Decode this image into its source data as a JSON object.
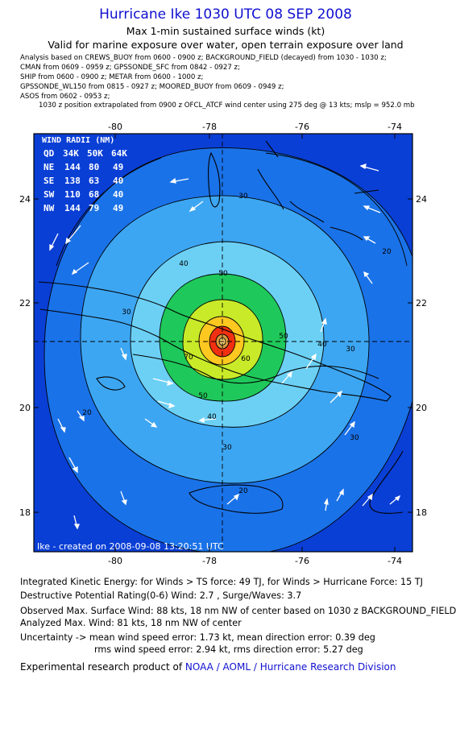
{
  "header": {
    "title": "Hurricane Ike 1030 UTC 08 SEP 2008",
    "subtitle": "Max 1-min sustained surface winds (kt)",
    "validity": "Valid for marine exposure over water, open terrain exposure over land"
  },
  "sources": [
    "Analysis based on  CREWS_BUOY from 0600 - 0900 z;  BACKGROUND_FIELD (decayed) from 1030 - 1030 z;",
    "CMAN from 0609 - 0959 z;  GPSSONDE_SFC from 0842 - 0927 z;",
    "SHIP from 0600 - 0900 z;  METAR from 0600 - 1000 z;",
    "GPSSONDE_WL150 from 0815 - 0927 z;  MOORED_BUOY from 0609 - 0949 z;",
    "ASOS from 0602 - 0953 z;"
  ],
  "position_note": "1030 z position extrapolated from 0900 z OFCL_ATCF wind center using 275 deg @ 13 kts; mslp = 952.0 mb",
  "map": {
    "lon_ticks": [
      "-80",
      "-78",
      "-76",
      "-74"
    ],
    "lat_ticks": [
      "24",
      "22",
      "20",
      "18"
    ],
    "lon_range": [
      -81.5,
      -73.5
    ],
    "lat_range": [
      17.3,
      25.2
    ],
    "center": {
      "lon": -77.5,
      "lat": 21.3
    },
    "contour_labels": [
      "30",
      "30",
      "40",
      "50",
      "30",
      "40",
      "50",
      "60",
      "70",
      "50",
      "40",
      "30",
      "20",
      "20",
      "20",
      "30"
    ],
    "wind_radii": {
      "title": "WIND RADII (NM)",
      "header": [
        "QD",
        "34K",
        "50K",
        "64K"
      ],
      "rows": [
        [
          "NE",
          "144",
          "80",
          "49"
        ],
        [
          "SE",
          "138",
          "63",
          "40"
        ],
        [
          "SW",
          "110",
          "68",
          "40"
        ],
        [
          "NW",
          "144",
          "79",
          "49"
        ]
      ]
    },
    "credit": "Ike - created on 2008-09-08 13:20:51 UTC",
    "colors": {
      "ocean": "#0a3fd6",
      "band20": "#1a72e8",
      "band30": "#3da6f2",
      "band40": "#6cd0f5",
      "band50": "#1fc85a",
      "band60": "#c9ea28",
      "band70": "#ffc820",
      "core": "#f03010",
      "vector": "#ffffff"
    }
  },
  "footer": {
    "ike": "Integrated Kinetic Energy:  for Winds > TS force: 49 TJ,  for Winds > Hurricane Force: 15 TJ",
    "drp": "Destructive Potential Rating(0-6)   Wind: 2.7 , Surge/Waves: 3.7",
    "obs": "Observed Max. Surface Wind: 88 kts, 18 nm NW of center based on 1030 z BACKGROUND_FIELD",
    "ana": "Analyzed Max. Wind: 81 kts, 18 nm NW of center",
    "unc1": "Uncertainty -> mean wind speed error: 1.73 kt,   mean direction error: 0.39 deg",
    "unc2": "rms wind speed error: 2.94 kt,   rms direction error: 5.27 deg",
    "credit_prefix": "Experimental research product of ",
    "credit_link": "NOAA / AOML / Hurricane Research Division"
  }
}
